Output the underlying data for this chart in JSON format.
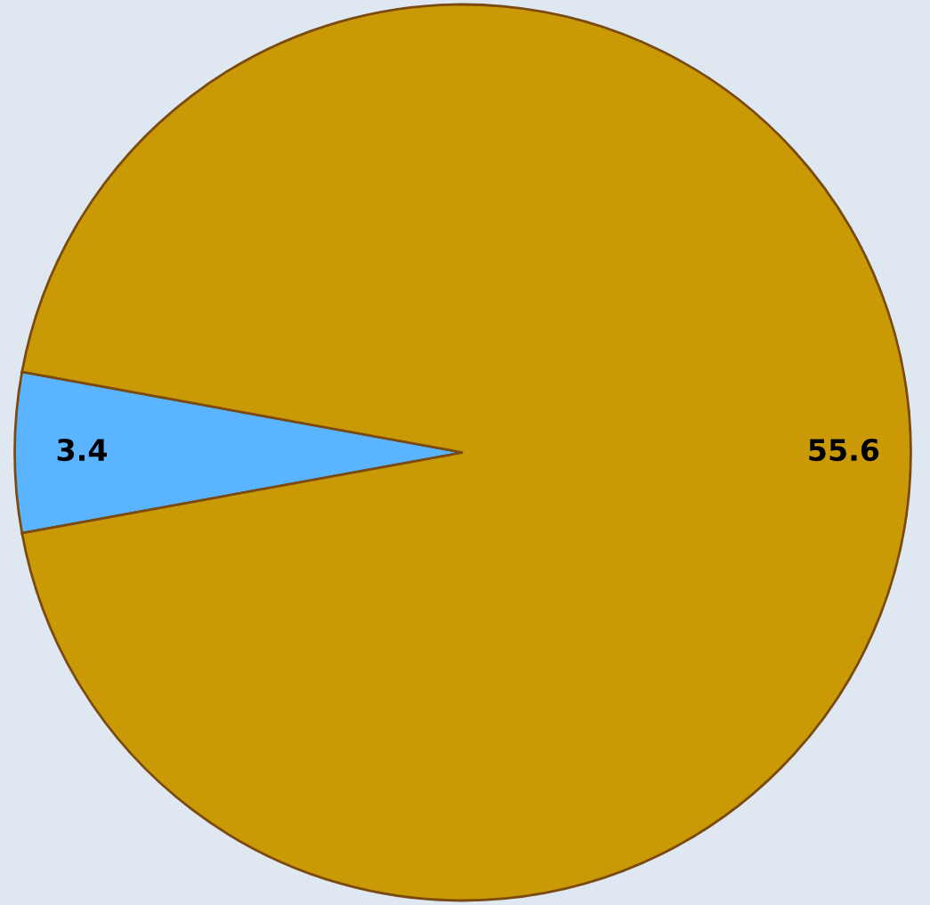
{
  "chart_data": {
    "type": "pie",
    "categories": [
      null,
      null
    ],
    "values": [
      3.4,
      55.6
    ],
    "colors": [
      "#5ab4ff",
      "#c99a06"
    ],
    "data_labels": true,
    "legend": false
  }
}
